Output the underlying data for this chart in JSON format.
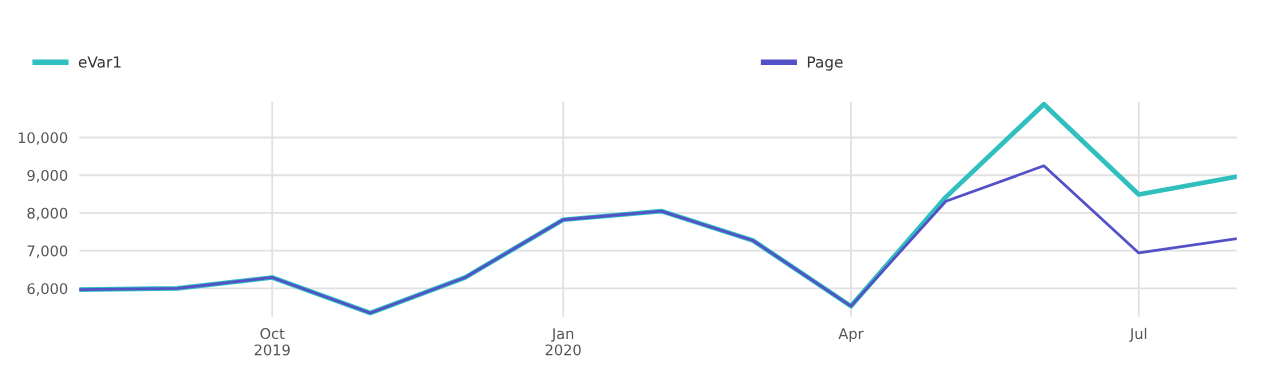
{
  "chart_data": {
    "type": "line",
    "x": [
      "2019-08",
      "2019-09",
      "2019-10",
      "2019-11",
      "2019-12",
      "2020-01",
      "2020-02",
      "2020-03",
      "2020-04",
      "2020-05",
      "2020-06",
      "2020-07",
      "2020-08"
    ],
    "series": [
      {
        "name": "eVar1",
        "color": "#2fbfbf",
        "values": [
          5970,
          6000,
          6290,
          5350,
          6290,
          7820,
          8050,
          7270,
          5530,
          8420,
          10880,
          8490,
          8960
        ]
      },
      {
        "name": "Page",
        "color": "#5451c8",
        "values": [
          5970,
          6000,
          6290,
          5350,
          6290,
          7820,
          8050,
          7270,
          5530,
          8310,
          9250,
          6940,
          7320
        ]
      }
    ],
    "xlim": [
      "2019-08",
      "2020-08"
    ],
    "xticks": [
      {
        "value": "2019-10",
        "label": "Oct\n2019"
      },
      {
        "value": "2020-01",
        "label": "Jan\n2020"
      },
      {
        "value": "2020-04",
        "label": "Apr"
      },
      {
        "value": "2020-07",
        "label": "Jul"
      }
    ],
    "ylim": [
      5250,
      10950
    ],
    "yticks": [
      {
        "value": 6000,
        "label": "6,000"
      },
      {
        "value": 7000,
        "label": "7,000"
      },
      {
        "value": 8000,
        "label": "8,000"
      },
      {
        "value": 9000,
        "label": "9,000"
      },
      {
        "value": 10000,
        "label": "10,000"
      }
    ],
    "grid": true,
    "legend": "top left",
    "marker": "none",
    "line_style": "solid"
  }
}
